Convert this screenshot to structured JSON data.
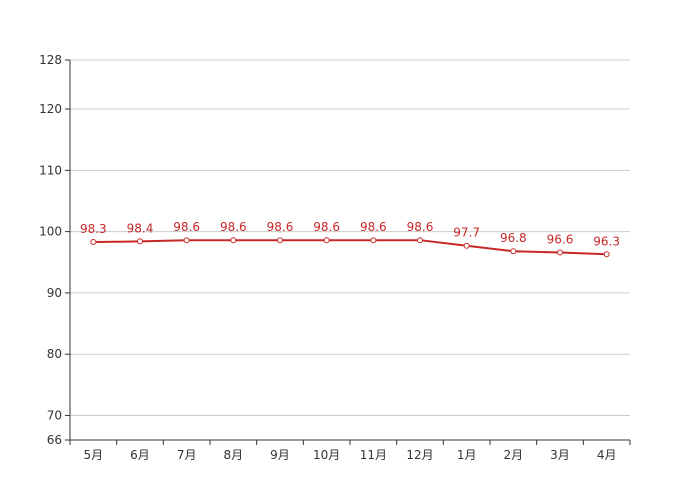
{
  "chart_data": {
    "type": "line",
    "title": "",
    "xlabel": "",
    "ylabel": "",
    "categories": [
      "5月",
      "6月",
      "7月",
      "8月",
      "9月",
      "10月",
      "11月",
      "12月",
      "1月",
      "2月",
      "3月",
      "4月"
    ],
    "series": [
      {
        "values": [
          98.3,
          98.4,
          98.6,
          98.6,
          98.6,
          98.6,
          98.6,
          98.6,
          97.7,
          96.8,
          96.6,
          96.3
        ],
        "color": "#c62828",
        "data_labels": true
      }
    ],
    "ylim": [
      66,
      128
    ],
    "yticks": [
      66,
      70,
      80,
      90,
      100,
      110,
      120,
      128
    ],
    "grid": true,
    "legend": "none"
  }
}
